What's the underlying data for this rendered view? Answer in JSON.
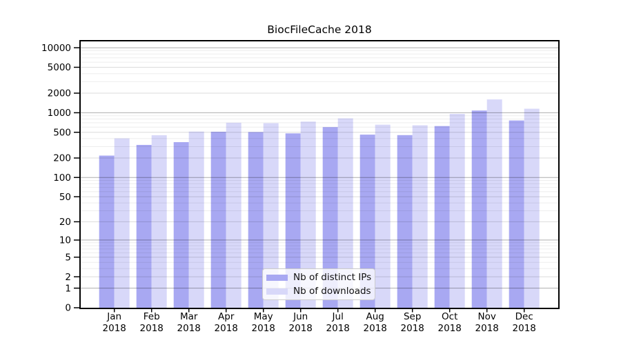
{
  "chart_data": {
    "type": "bar",
    "title": "BiocFileCache 2018",
    "categories": [
      "Jan 2018",
      "Feb 2018",
      "Mar 2018",
      "Apr 2018",
      "May 2018",
      "Jun 2018",
      "Jul 2018",
      "Aug 2018",
      "Sep 2018",
      "Oct 2018",
      "Nov 2018",
      "Dec 2018"
    ],
    "series": [
      {
        "name": "Nb of distinct IPs",
        "color": "#a8a8f2",
        "values": [
          218,
          319,
          352,
          510,
          505,
          480,
          600,
          460,
          452,
          623,
          1080,
          760
        ]
      },
      {
        "name": "Nb of downloads",
        "color": "#d8d8f9",
        "values": [
          402,
          450,
          512,
          700,
          690,
          730,
          820,
          654,
          640,
          961,
          1600,
          1150
        ]
      }
    ],
    "xlabel": "",
    "ylabel": "",
    "yscale": "log10(1+value)",
    "ylim": [
      0,
      12800
    ],
    "yticks": [
      0,
      1,
      2,
      5,
      10,
      20,
      50,
      100,
      200,
      500,
      1000,
      2000,
      5000,
      10000
    ],
    "grid": "horizontal, drawn over bars",
    "legend_position": "bottom-center"
  },
  "colors": {
    "ips_bar": "#a8a8f2",
    "downloads_bar": "#d8d8f9",
    "grid_major": "rgba(0,0,0,0.32)",
    "grid_mid": "rgba(0,0,0,0.14)",
    "grid_minor": "rgba(0,0,0,0.07)",
    "axis": "#000000",
    "text": "#000000",
    "background": "#ffffff"
  }
}
